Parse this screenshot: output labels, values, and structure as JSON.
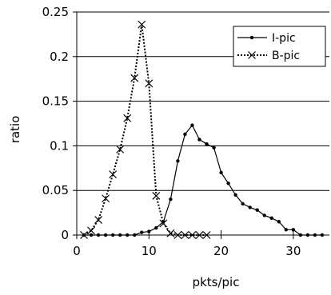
{
  "chart_data": {
    "type": "line",
    "xlabel": "pkts/pic",
    "ylabel": "ratio",
    "xlim": [
      0,
      35
    ],
    "ylim": [
      0,
      0.25
    ],
    "x_ticks": [
      0,
      10,
      20,
      30
    ],
    "x_tick_labels": [
      "0",
      "10",
      "20",
      "30"
    ],
    "y_ticks": [
      0,
      0.05,
      0.1,
      0.15,
      0.2,
      0.25
    ],
    "y_tick_labels": [
      "0",
      "0.05",
      "0.1",
      "0.15",
      "0.2",
      "0.25"
    ],
    "grid": "horizontal",
    "legend_position": "top-right",
    "series": [
      {
        "name": "I-pic",
        "marker": "dot",
        "line_style": "solid",
        "x": [
          1,
          2,
          3,
          4,
          5,
          6,
          7,
          8,
          9,
          10,
          11,
          12,
          13,
          14,
          15,
          16,
          17,
          18,
          19,
          20,
          21,
          22,
          23,
          24,
          25,
          26,
          27,
          28,
          29,
          30,
          31,
          32,
          33,
          34
        ],
        "y": [
          0,
          0,
          0,
          0,
          0,
          0,
          0,
          0,
          0.003,
          0.004,
          0.008,
          0.015,
          0.04,
          0.083,
          0.113,
          0.123,
          0.107,
          0.102,
          0.098,
          0.07,
          0.058,
          0.045,
          0.035,
          0.031,
          0.028,
          0.022,
          0.019,
          0.015,
          0.006,
          0.006,
          0,
          0,
          0,
          0
        ]
      },
      {
        "name": "B-pic",
        "marker": "x",
        "line_style": "dotted",
        "x": [
          1,
          2,
          3,
          4,
          5,
          6,
          7,
          8,
          9,
          10,
          11,
          12,
          13,
          14,
          15,
          16,
          17,
          18
        ],
        "y": [
          0,
          0.005,
          0.017,
          0.041,
          0.068,
          0.096,
          0.131,
          0.176,
          0.236,
          0.17,
          0.044,
          0.013,
          0.002,
          0,
          0,
          0,
          0,
          0
        ]
      }
    ]
  }
}
